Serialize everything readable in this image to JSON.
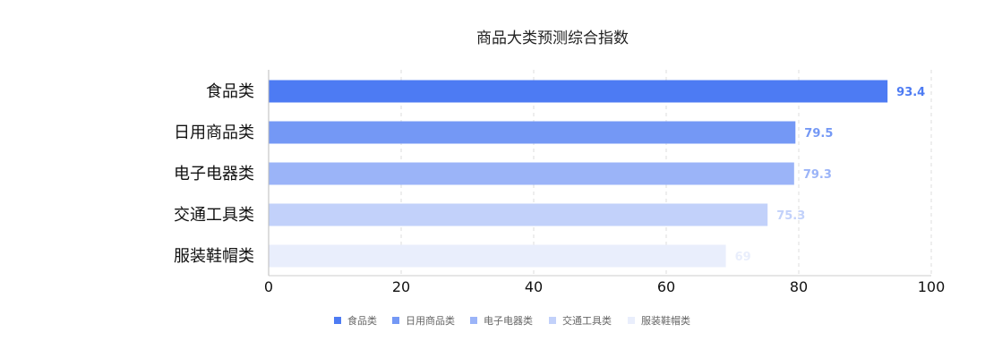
{
  "chart_data": {
    "type": "bar",
    "orientation": "horizontal",
    "title": "商品大类预测综合指数",
    "categories": [
      "食品类",
      "日用商品类",
      "电子电器类",
      "交通工具类",
      "服装鞋帽类"
    ],
    "values": [
      93.4,
      79.5,
      79.3,
      75.3,
      69
    ],
    "value_labels": [
      "93.4",
      "79.5",
      "79.3",
      "75.3",
      "69"
    ],
    "colors": [
      "#4D7BF3",
      "#7498F5",
      "#9BB4F8",
      "#C2D1FA",
      "#E9EEFC"
    ],
    "xlim": [
      0,
      100
    ],
    "x_ticks": [
      "0",
      "20",
      "40",
      "60",
      "80",
      "100"
    ],
    "x_tick_values": [
      0,
      20,
      40,
      60,
      80,
      100
    ],
    "grid": "vertical-dashed",
    "legend": {
      "position": "bottom-center",
      "entries": [
        "食品类",
        "日用商品类",
        "电子电器类",
        "交通工具类",
        "服装鞋帽类"
      ]
    }
  }
}
